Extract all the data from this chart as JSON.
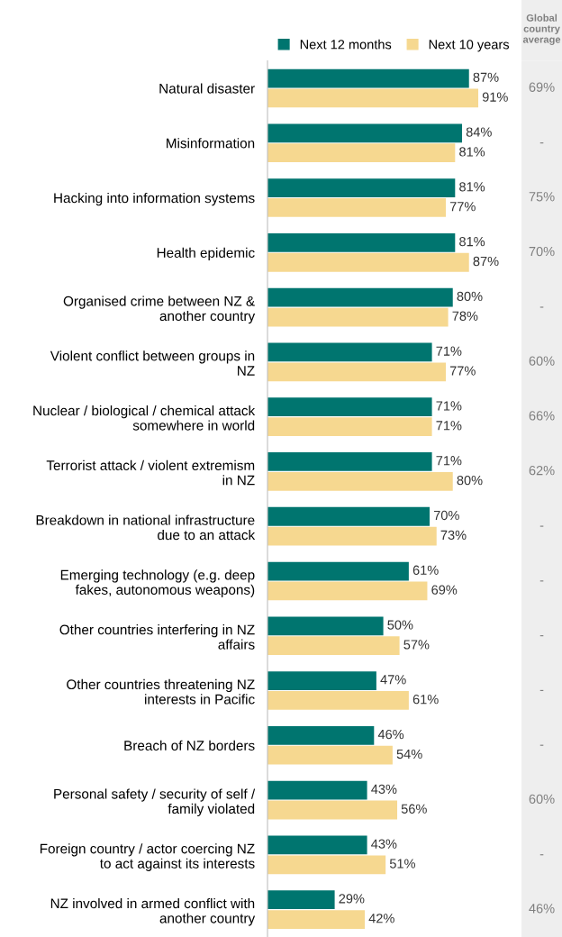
{
  "chart_data": [
    {
      "type": "bar",
      "orientation": "horizontal",
      "legend": "top",
      "grid": false,
      "categories": [
        "Natural disaster",
        "Misinformation",
        "Hacking into information systems",
        "Health epidemic",
        "Organised crime between NZ &\nanother country",
        "Violent conflict between groups in\nNZ",
        "Nuclear / biological / chemical attack\nsomewhere in world",
        "Terrorist attack / violent extremism\nin NZ",
        "Breakdown in national infrastructure\ndue to an attack",
        "Emerging technology (e.g. deep\nfakes, autonomous weapons)",
        "Other countries interfering in NZ\naffairs",
        "Other countries threatening NZ\ninterests in Pacific",
        "Breach of NZ borders",
        "Personal safety / security of self /\nfamily violated",
        "Foreign country / actor coercing NZ\nto act against its interests",
        "NZ involved in armed conflict with\nanother country"
      ],
      "series": [
        {
          "name": "Next 12 months",
          "color": "#00756f",
          "values": [
            87,
            84,
            81,
            81,
            80,
            71,
            71,
            71,
            70,
            61,
            50,
            47,
            46,
            43,
            43,
            29
          ],
          "value_labels": [
            "87%",
            "84%",
            "81%",
            "81%",
            "80%",
            "71%",
            "71%",
            "71%",
            "70%",
            "61%",
            "50%",
            "47%",
            "46%",
            "43%",
            "43%",
            "29%"
          ]
        },
        {
          "name": "Next 10 years",
          "color": "#f6d890",
          "values": [
            91,
            81,
            77,
            87,
            78,
            77,
            71,
            80,
            73,
            69,
            57,
            61,
            54,
            56,
            51,
            42
          ],
          "value_labels": [
            "91%",
            "81%",
            "77%",
            "87%",
            "78%",
            "77%",
            "71%",
            "80%",
            "73%",
            "69%",
            "57%",
            "61%",
            "54%",
            "56%",
            "51%",
            "42%"
          ]
        }
      ]
    },
    {
      "type": "other",
      "title": "Global\ncountry\naverage",
      "categories": [
        null,
        null,
        null,
        null,
        null,
        null,
        null,
        null,
        null,
        null,
        null,
        null,
        null,
        null,
        null,
        null
      ],
      "value_labels": [
        "69%",
        "-",
        "75%",
        "70%",
        "-",
        "60%",
        "66%",
        "62%",
        "-",
        "-",
        "-",
        "-",
        "-",
        "60%",
        "-",
        "46%"
      ]
    }
  ]
}
